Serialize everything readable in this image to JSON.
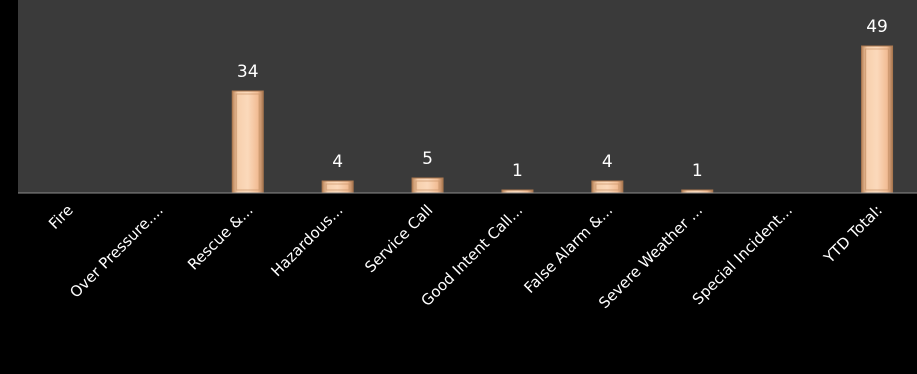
{
  "chart_data": {
    "type": "bar",
    "title": "",
    "xlabel": "",
    "ylabel": "",
    "categories": [
      "Fire",
      "Over Pressure....",
      "Rescue &...",
      "Hazardous...",
      "Service Call",
      "Good Intent Call...",
      "False Alarm &...",
      "Severe Weather ...",
      "Special Incident...",
      "YTD Total:"
    ],
    "values": [
      0,
      0,
      34,
      4,
      5,
      1,
      4,
      1,
      0,
      49
    ],
    "data_labels": [
      "",
      "",
      "34",
      "4",
      "5",
      "1",
      "4",
      "1",
      "",
      "49"
    ],
    "ylim": [
      0,
      49
    ],
    "grid": false,
    "legend": "none",
    "colors": {
      "background": "#000000",
      "plot_area": "#3a3a3a",
      "bar_fill": "#f4c19a",
      "bar_edge": "#a9774f",
      "text": "#ffffff",
      "axis_line": "#8c8c8c"
    }
  }
}
